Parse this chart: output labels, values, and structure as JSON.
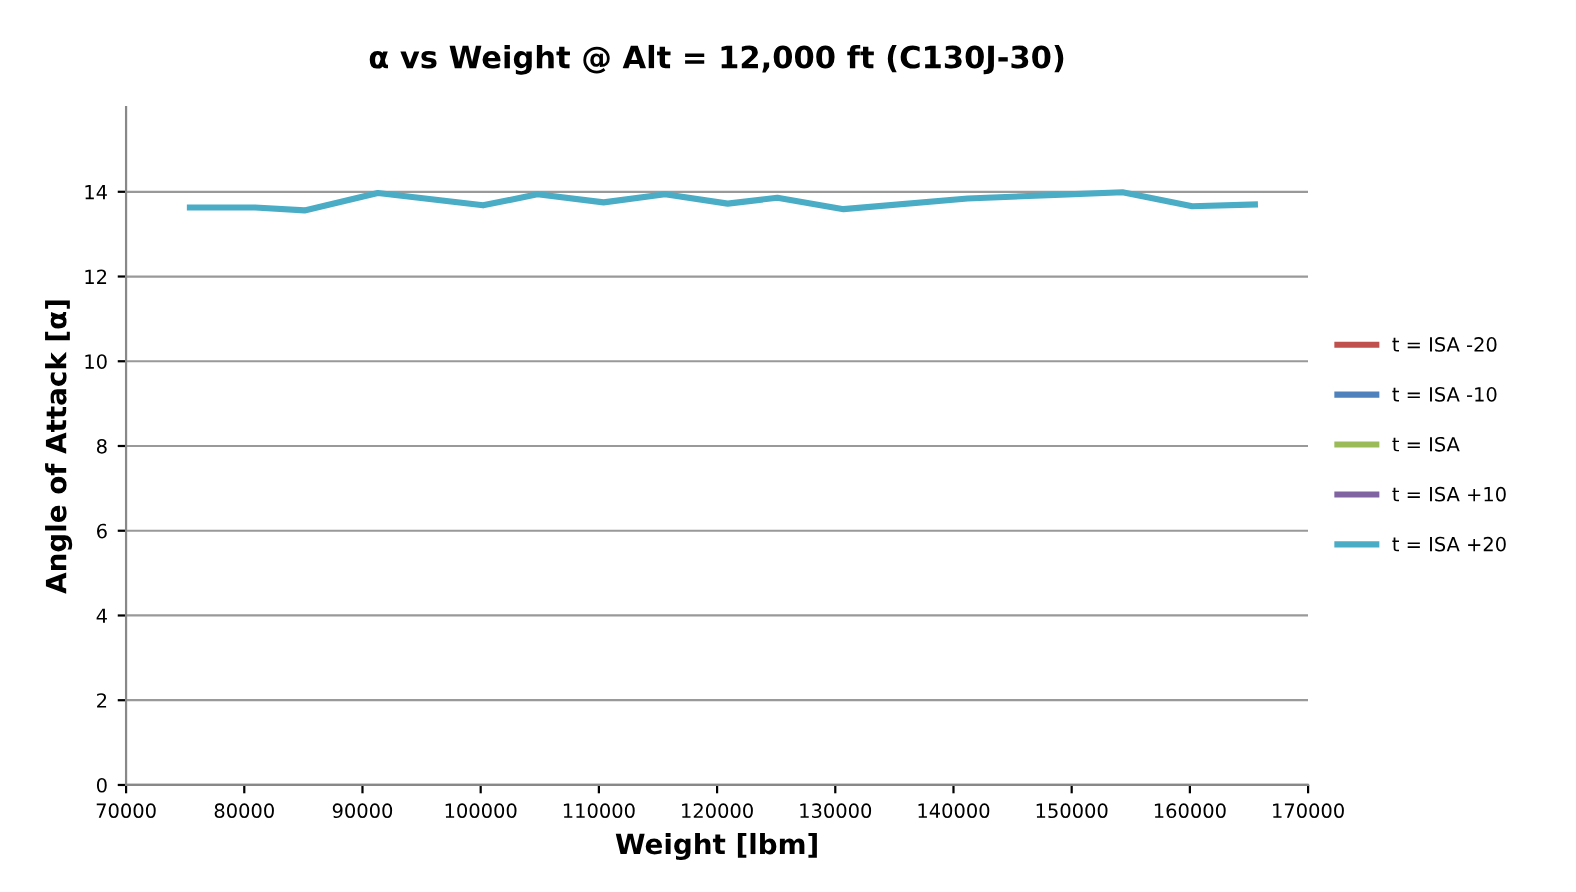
{
  "chart_data": {
    "type": "line",
    "title": "α vs Weight @ Alt = 12,000 ft (C130J-30)",
    "xlabel": "Weight [lbm]",
    "ylabel": "Angle of Attack [α]",
    "x": [
      75400,
      80900,
      85100,
      91300,
      100200,
      104800,
      110400,
      115600,
      120900,
      125100,
      130700,
      141200,
      149700,
      154300,
      160200,
      165500
    ],
    "series": [
      {
        "name": "t = ISA -20",
        "color": "#c0504d",
        "values": [
          null,
          null,
          null,
          null,
          null,
          null,
          null,
          null,
          null,
          null,
          null,
          null,
          null,
          null,
          null,
          null
        ]
      },
      {
        "name": "t = ISA -10",
        "color": "#4f81bd",
        "values": [
          null,
          null,
          null,
          null,
          null,
          null,
          null,
          null,
          null,
          null,
          null,
          null,
          null,
          null,
          null,
          null
        ]
      },
      {
        "name": "t = ISA",
        "color": "#9bbb59",
        "values": [
          null,
          null,
          null,
          null,
          null,
          null,
          null,
          null,
          null,
          null,
          null,
          null,
          null,
          null,
          null,
          null
        ]
      },
      {
        "name": "t = ISA +10",
        "color": "#8064a2",
        "values": [
          null,
          null,
          null,
          null,
          null,
          null,
          null,
          null,
          null,
          null,
          null,
          null,
          null,
          null,
          null,
          null
        ]
      },
      {
        "name": "t = ISA +20",
        "color": "#4bacc6",
        "values": [
          13.63,
          13.63,
          13.56,
          13.97,
          13.68,
          13.94,
          13.75,
          13.94,
          13.72,
          13.86,
          13.59,
          13.84,
          13.94,
          13.99,
          13.66,
          13.7
        ]
      }
    ],
    "xlim": [
      70000,
      170000
    ],
    "xticks": [
      70000,
      80000,
      90000,
      100000,
      110000,
      120000,
      130000,
      140000,
      150000,
      160000,
      170000
    ],
    "ylim": [
      0,
      16
    ],
    "yticks": [
      0,
      2,
      4,
      6,
      8,
      10,
      12,
      14
    ],
    "grid": "y",
    "legend": "right",
    "marker": "none",
    "line_style": "solid"
  }
}
